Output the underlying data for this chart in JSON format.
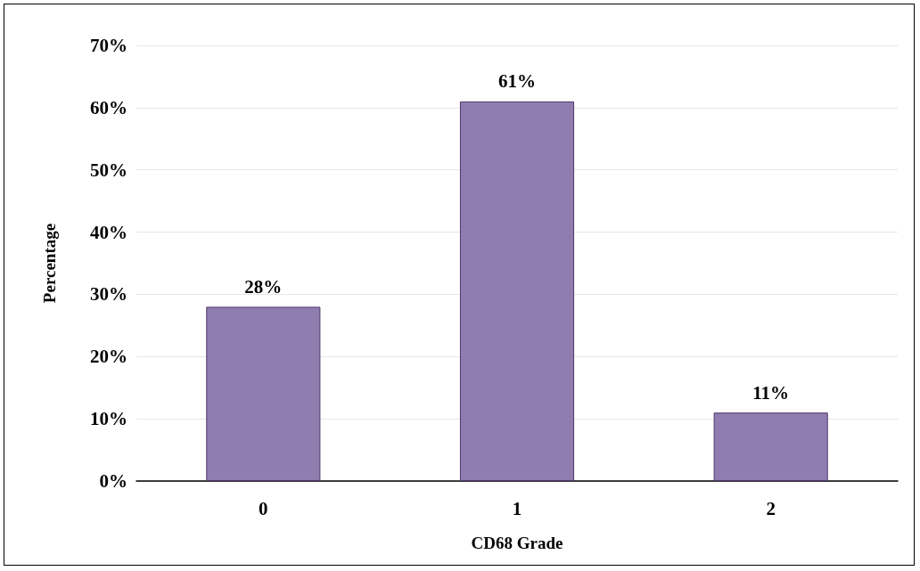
{
  "chart_data": {
    "type": "bar",
    "xlabel": "CD68 Grade",
    "ylabel": "Percentage",
    "categories": [
      "0",
      "1",
      "2"
    ],
    "values": [
      28,
      61,
      11
    ],
    "value_labels": [
      "28%",
      "61%",
      "11%"
    ],
    "color": "#907db0",
    "ylim": [
      0,
      70
    ],
    "yticks": [
      {
        "value": 0,
        "label": "0%"
      },
      {
        "value": 10,
        "label": "10%"
      },
      {
        "value": 20,
        "label": "20%"
      },
      {
        "value": 30,
        "label": "30%"
      },
      {
        "value": 40,
        "label": "40%"
      },
      {
        "value": 50,
        "label": "50%"
      },
      {
        "value": 60,
        "label": "60%"
      },
      {
        "value": 70,
        "label": "70%"
      }
    ],
    "grid": "y"
  }
}
